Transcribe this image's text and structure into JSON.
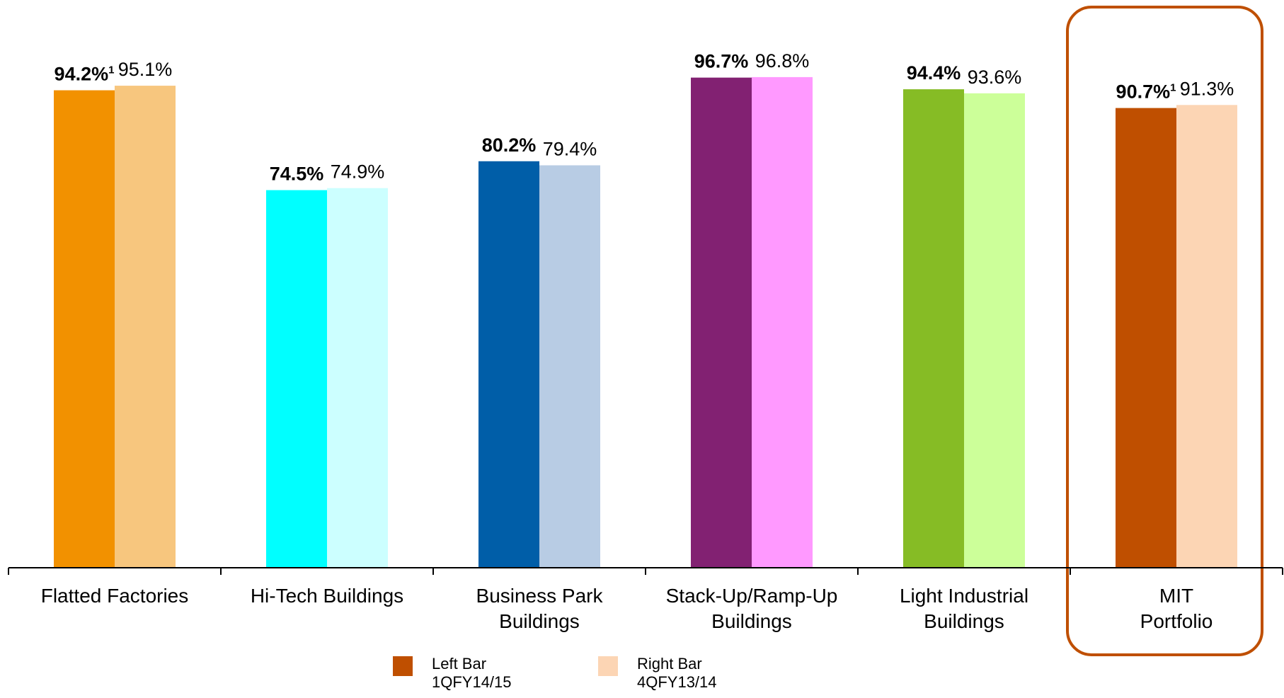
{
  "chart_data": {
    "type": "bar",
    "title": "",
    "xlabel": "",
    "ylabel": "",
    "ylim": [
      0,
      100
    ],
    "grid": false,
    "legend_position": "bottom",
    "categories": [
      [
        "Flatted Factories"
      ],
      [
        "Hi-Tech Buildings"
      ],
      [
        "Business Park",
        "Buildings"
      ],
      [
        "Stack-Up/Ramp-Up",
        "Buildings"
      ],
      [
        "Light Industrial",
        "Buildings"
      ],
      [
        "MIT",
        "Portfolio"
      ]
    ],
    "series": [
      {
        "name": "Left Bar 1QFY14/15",
        "values": [
          94.2,
          74.5,
          80.2,
          96.7,
          94.4,
          90.7
        ],
        "labels": [
          "94.2%",
          "74.5%",
          "80.2%",
          "96.7%",
          "94.4%",
          "90.7%"
        ],
        "superscripts": [
          "1",
          "",
          "",
          "",
          "",
          "1"
        ],
        "colors": [
          "#F29100",
          "#00FFFF",
          "#005EA8",
          "#822172",
          "#86BC25",
          "#BF4F00"
        ]
      },
      {
        "name": "Right Bar 4QFY13/14",
        "values": [
          95.1,
          74.9,
          79.4,
          96.8,
          93.6,
          91.3
        ],
        "labels": [
          "95.1%",
          "74.9%",
          "79.4%",
          "96.8%",
          "93.6%",
          "91.3%"
        ],
        "colors": [
          "#F7C67E",
          "#CCFFFF",
          "#B8CCE4",
          "#FF99FF",
          "#CCFF99",
          "#FCD5B4"
        ]
      }
    ],
    "highlight": {
      "category_index": 5,
      "color": "#BF4F00"
    }
  },
  "legend": {
    "left": {
      "line1": "Left Bar",
      "line2": "1QFY14/15",
      "color": "#BF4F00"
    },
    "right": {
      "line1": "Right Bar",
      "line2": "4QFY13/14",
      "color": "#FCD5B4"
    }
  }
}
